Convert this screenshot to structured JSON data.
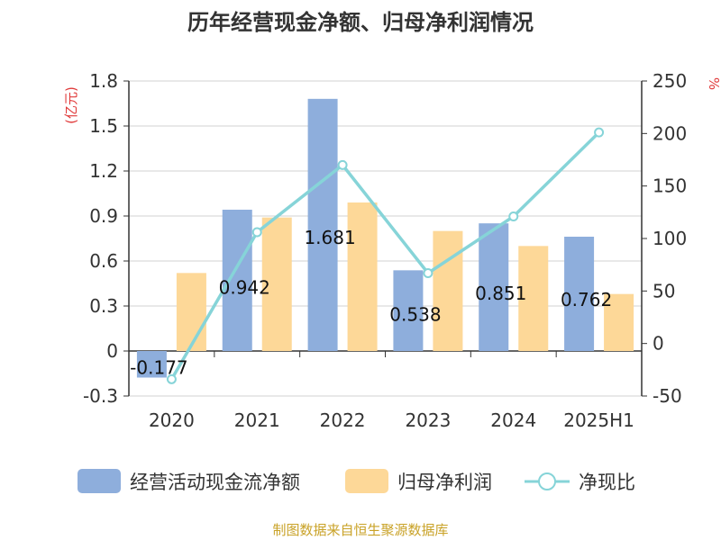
{
  "title": "历年经营现金净额、归母净利润情况",
  "source": "制图数据来自恒生聚源数据库",
  "chart_data": {
    "type": "bar",
    "categories": [
      "2020",
      "2021",
      "2022",
      "2023",
      "2024",
      "2025H1"
    ],
    "left_unit": "(亿元)",
    "right_unit": "%",
    "left_axis": {
      "min": -0.3,
      "max": 1.8,
      "ticks": [
        "-0.3",
        "0",
        "0.3",
        "0.6",
        "0.9",
        "1.2",
        "1.5",
        "1.8"
      ]
    },
    "right_axis": {
      "min": -50,
      "max": 250,
      "ticks": [
        "-50",
        "0",
        "50",
        "100",
        "150",
        "200",
        "250"
      ]
    },
    "grid": true,
    "legend_position": "bottom",
    "series": [
      {
        "name": "经营活动现金流净额",
        "type": "bar",
        "axis": "left",
        "color": "#8eaedc",
        "values": [
          -0.177,
          0.942,
          1.681,
          0.538,
          0.851,
          0.762
        ],
        "labels": [
          "-0.177",
          "0.942",
          "1.681",
          "0.538",
          "0.851",
          "0.762"
        ]
      },
      {
        "name": "归母净利润",
        "type": "bar",
        "axis": "left",
        "color": "#fdd898",
        "values": [
          0.52,
          0.89,
          0.99,
          0.8,
          0.7,
          0.38
        ]
      },
      {
        "name": "净现比",
        "type": "line",
        "axis": "right",
        "color": "#86d4d8",
        "values": [
          -34,
          106,
          170,
          67,
          121,
          201
        ]
      }
    ]
  }
}
